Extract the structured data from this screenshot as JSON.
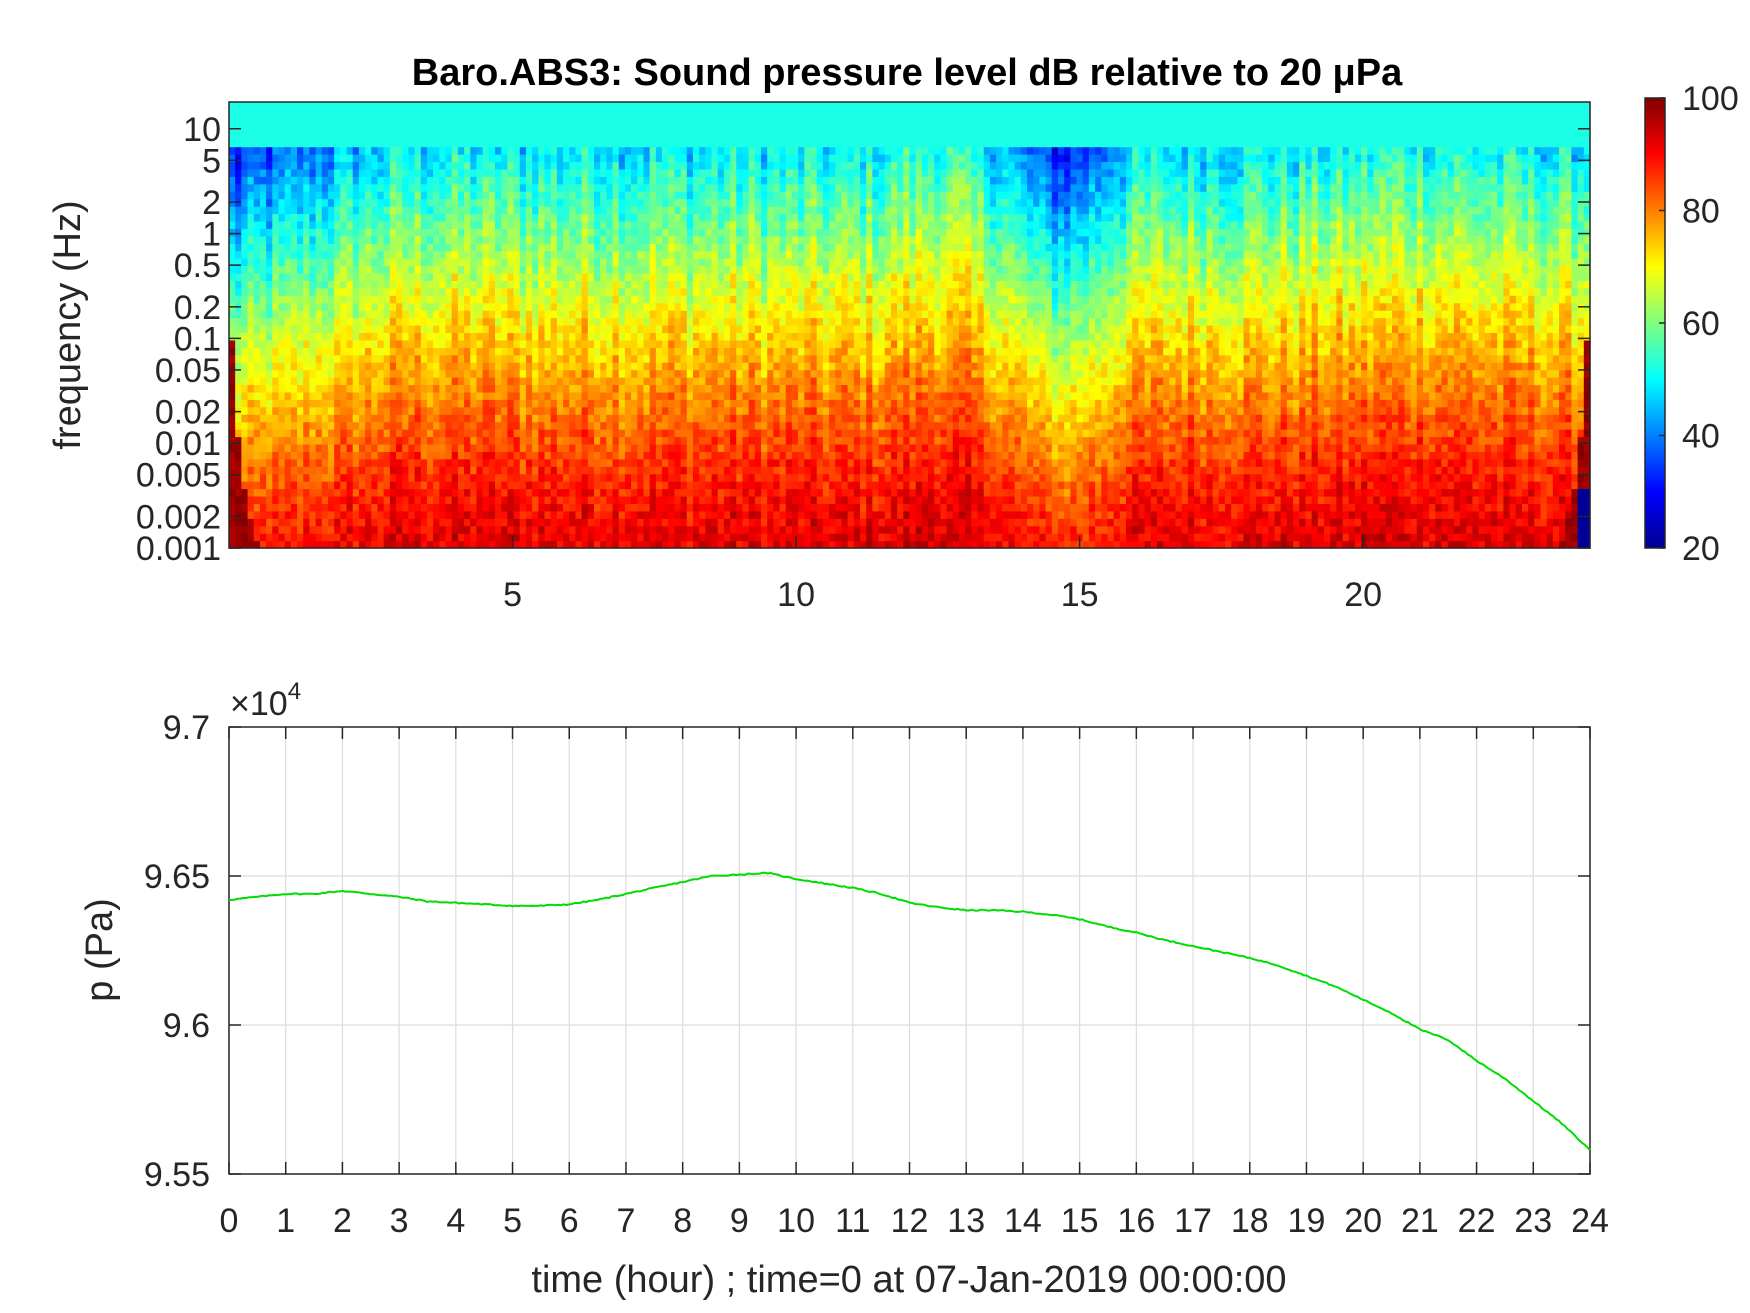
{
  "chart_data": [
    {
      "type": "heatmap",
      "title": "Baro.ABS3: Sound pressure level dB relative to 20 μPa",
      "xlabel": "",
      "ylabel": "frequency (Hz)",
      "xlim": [
        0,
        24
      ],
      "ylim": [
        0.001,
        18
      ],
      "yscale": "log",
      "xticks": [
        5,
        10,
        15,
        20
      ],
      "xtick_labels": [
        "5",
        "10",
        "15",
        "20"
      ],
      "yticks": [
        0.001,
        0.002,
        0.005,
        0.01,
        0.02,
        0.05,
        0.1,
        0.2,
        0.5,
        1,
        2,
        5,
        10
      ],
      "ytick_labels": [
        "0.001",
        "0.002",
        "0.005",
        "0.01",
        "0.02",
        "0.05",
        "0.1",
        "0.2",
        "0.5",
        "1",
        "2",
        "5",
        "10"
      ],
      "colormap": "jet",
      "colorbar": {
        "range": [
          20,
          100
        ],
        "ticks": [
          20,
          40,
          60,
          80,
          100
        ],
        "tick_labels": [
          "20",
          "40",
          "60",
          "80",
          "100"
        ]
      },
      "grid": false
    },
    {
      "type": "line",
      "title": "",
      "xlabel": "time (hour) ; time=0 at 07-Jan-2019 00:00:00",
      "ylabel": "p (Pa)",
      "xlim": [
        0,
        24
      ],
      "ylim": [
        95500,
        97000
      ],
      "y_multiplier_label": "×10",
      "y_multiplier_exponent": "4",
      "xticks": [
        0,
        1,
        2,
        3,
        4,
        5,
        6,
        7,
        8,
        9,
        10,
        11,
        12,
        13,
        14,
        15,
        16,
        17,
        18,
        19,
        20,
        21,
        22,
        23,
        24
      ],
      "xtick_labels": [
        "0",
        "1",
        "2",
        "3",
        "4",
        "5",
        "6",
        "7",
        "8",
        "9",
        "10",
        "11",
        "12",
        "13",
        "14",
        "15",
        "16",
        "17",
        "18",
        "19",
        "20",
        "21",
        "22",
        "23",
        "24"
      ],
      "yticks": [
        95500,
        96000,
        96500,
        97000
      ],
      "ytick_labels": [
        "9.55",
        "9.6",
        "9.65",
        "9.7"
      ],
      "grid": true,
      "series_color": "#00dd00",
      "x": [
        0,
        0.5,
        1,
        1.5,
        2,
        2.5,
        3,
        3.5,
        4,
        4.5,
        5,
        5.5,
        6,
        6.5,
        7,
        7.5,
        8,
        8.5,
        9,
        9.5,
        10,
        10.5,
        11,
        11.5,
        12,
        12.5,
        13,
        13.5,
        14,
        14.5,
        15,
        15.5,
        16,
        16.5,
        17,
        17.5,
        18,
        18.5,
        19,
        19.5,
        20,
        20.5,
        21,
        21.5,
        22,
        22.5,
        23,
        23.5,
        24
      ],
      "y": [
        96420,
        96430,
        96440,
        96440,
        96450,
        96440,
        96430,
        96415,
        96410,
        96405,
        96400,
        96400,
        96405,
        96420,
        96440,
        96460,
        96480,
        96500,
        96505,
        96510,
        96490,
        96475,
        96460,
        96440,
        96410,
        96395,
        96385,
        96385,
        96380,
        96370,
        96355,
        96330,
        96310,
        96285,
        96265,
        96245,
        96225,
        96200,
        96165,
        96130,
        96085,
        96040,
        95985,
        95950,
        95880,
        95820,
        95745,
        95670,
        95580
      ]
    }
  ]
}
